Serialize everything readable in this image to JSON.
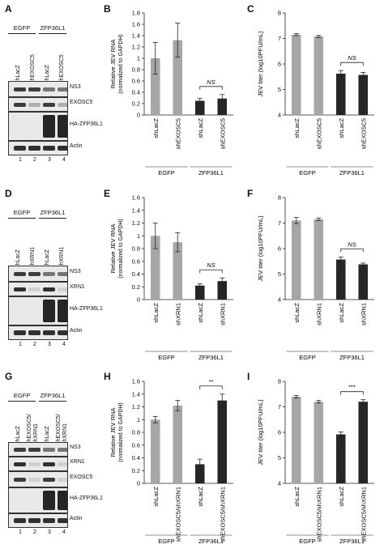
{
  "panels": {
    "A": "A",
    "B": "B",
    "C": "C",
    "D": "D",
    "E": "E",
    "F": "F",
    "G": "G",
    "H": "H",
    "I": "I"
  },
  "blots": [
    {
      "id": "A",
      "groups": [
        "EGFP",
        "ZFP36L1"
      ],
      "lanes": [
        "shLacZ",
        "shEXOSC5",
        "shLacZ",
        "shEXOSC5"
      ],
      "bands": [
        "NS3",
        "EXOSC5",
        "HA-ZFP36L1",
        "Actin"
      ],
      "lane_numbers": [
        "1",
        "2",
        "3",
        "4"
      ]
    },
    {
      "id": "D",
      "groups": [
        "EGFP",
        "ZFP36L1"
      ],
      "lanes": [
        "shLacZ",
        "shXRN1",
        "shLacZ",
        "shXRN1"
      ],
      "bands": [
        "NS3",
        "XRN1",
        "HA-ZFP36L1",
        "Actin"
      ],
      "lane_numbers": [
        "1",
        "2",
        "3",
        "4"
      ]
    },
    {
      "id": "G",
      "groups": [
        "EGFP",
        "ZFP36L1"
      ],
      "lanes": [
        "shLacZ",
        "shEXOSC5/\nshXRN1",
        "shLacZ",
        "shEXOSC5/\nshXRN1"
      ],
      "lanes_display": [
        "shLacZ",
        "shEXOSC5/ shXRN1",
        "shLacZ",
        "shEXOSC5/ shXRN1"
      ],
      "bands": [
        "NS3",
        "XRN1",
        "EXOSC5",
        "HA-ZFP36L1",
        "Actin"
      ],
      "lane_numbers": [
        "1",
        "2",
        "3",
        "4"
      ]
    }
  ],
  "colors": {
    "egfp_bar": "#a6a6a6",
    "zfp_bar": "#262626",
    "axis": "#222222"
  },
  "chart_data": [
    {
      "id": "B",
      "type": "bar",
      "ylabel_line1": "Relative JEV RNA",
      "ylabel_line2": "(normalized to GAPDH)",
      "ylim": [
        0,
        1.8
      ],
      "yticks": [
        "0",
        "0.2",
        "0.4",
        "0.6",
        "0.8",
        "1",
        "1.2",
        "1.4",
        "1.6",
        "1.8"
      ],
      "categories": [
        "shLacZ",
        "shEXOSC5",
        "shLacZ",
        "shEXOSC5"
      ],
      "values": [
        1.0,
        1.32,
        0.25,
        0.29
      ],
      "errors": [
        0.28,
        0.3,
        0.04,
        0.07
      ],
      "groups": [
        "EGFP",
        "ZFP36L1"
      ],
      "significance": [
        {
          "pair": [
            2,
            3
          ],
          "label": "NS"
        }
      ]
    },
    {
      "id": "C",
      "type": "bar",
      "ylabel": "JEV titer (log10PFU/mL)",
      "ylim": [
        4,
        8
      ],
      "yticks": [
        "4",
        "5",
        "6",
        "7",
        "8"
      ],
      "categories": [
        "shLacZ",
        "shEXOSC5",
        "shLacZ",
        "shEXOSC5"
      ],
      "values": [
        7.15,
        7.08,
        5.62,
        5.57
      ],
      "errors": [
        0.04,
        0.04,
        0.12,
        0.1
      ],
      "groups": [
        "EGFP",
        "ZFP36L1"
      ],
      "significance": [
        {
          "pair": [
            2,
            3
          ],
          "label": "NS"
        }
      ]
    },
    {
      "id": "E",
      "type": "bar",
      "ylabel_line1": "Relative JEV RNA",
      "ylabel_line2": "(normalized to GAPDH)",
      "ylim": [
        0,
        1.6
      ],
      "yticks": [
        "0",
        "0.2",
        "0.4",
        "0.6",
        "0.8",
        "1",
        "1.2",
        "1.4",
        "1.6"
      ],
      "categories": [
        "shLacZ",
        "shXRN1",
        "shLacZ",
        "shXRN1"
      ],
      "values": [
        1.0,
        0.9,
        0.22,
        0.29
      ],
      "errors": [
        0.2,
        0.15,
        0.03,
        0.05
      ],
      "groups": [
        "EGFP",
        "ZFP36L1"
      ],
      "significance": [
        {
          "pair": [
            2,
            3
          ],
          "label": "NS"
        }
      ]
    },
    {
      "id": "F",
      "type": "bar",
      "ylabel": "JEV titer (log10PFU/mL)",
      "ylim": [
        4,
        8
      ],
      "yticks": [
        "4",
        "5",
        "6",
        "7",
        "8"
      ],
      "categories": [
        "shLacZ",
        "shXRN1",
        "shLacZ",
        "shXRN1"
      ],
      "values": [
        7.1,
        7.15,
        5.57,
        5.38
      ],
      "errors": [
        0.12,
        0.05,
        0.1,
        0.05
      ],
      "groups": [
        "EGFP",
        "ZFP36L1"
      ],
      "significance": [
        {
          "pair": [
            2,
            3
          ],
          "label": "NS"
        }
      ]
    },
    {
      "id": "H",
      "type": "bar",
      "ylabel_line1": "Relative JEV RNA",
      "ylabel_line2": "(normalized to GAPDH)",
      "ylim": [
        0,
        1.6
      ],
      "yticks": [
        "0",
        "0.2",
        "0.4",
        "0.6",
        "0.8",
        "1",
        "1.2",
        "1.4",
        "1.6"
      ],
      "categories": [
        "shLacZ",
        "shEXOSC5/shXRN1",
        "shLacZ",
        "shEXOSC5/shXRN1"
      ],
      "values": [
        1.0,
        1.22,
        0.3,
        1.3
      ],
      "errors": [
        0.05,
        0.08,
        0.08,
        0.1
      ],
      "groups": [
        "EGFP",
        "ZFP36L1"
      ],
      "significance": [
        {
          "pair": [
            2,
            3
          ],
          "label": "**"
        }
      ]
    },
    {
      "id": "I",
      "type": "bar",
      "ylabel": "JEV titer (log10PFU/mL)",
      "ylim": [
        4,
        8
      ],
      "yticks": [
        "4",
        "5",
        "6",
        "7",
        "8"
      ],
      "categories": [
        "shLacZ",
        "shEXOSC5/shXRN1",
        "shLacZ",
        "shEXOSC5/shXRN1"
      ],
      "values": [
        7.4,
        7.2,
        5.92,
        7.2
      ],
      "errors": [
        0.05,
        0.05,
        0.1,
        0.08
      ],
      "groups": [
        "EGFP",
        "ZFP36L1"
      ],
      "significance": [
        {
          "pair": [
            2,
            3
          ],
          "label": "***"
        }
      ]
    }
  ]
}
